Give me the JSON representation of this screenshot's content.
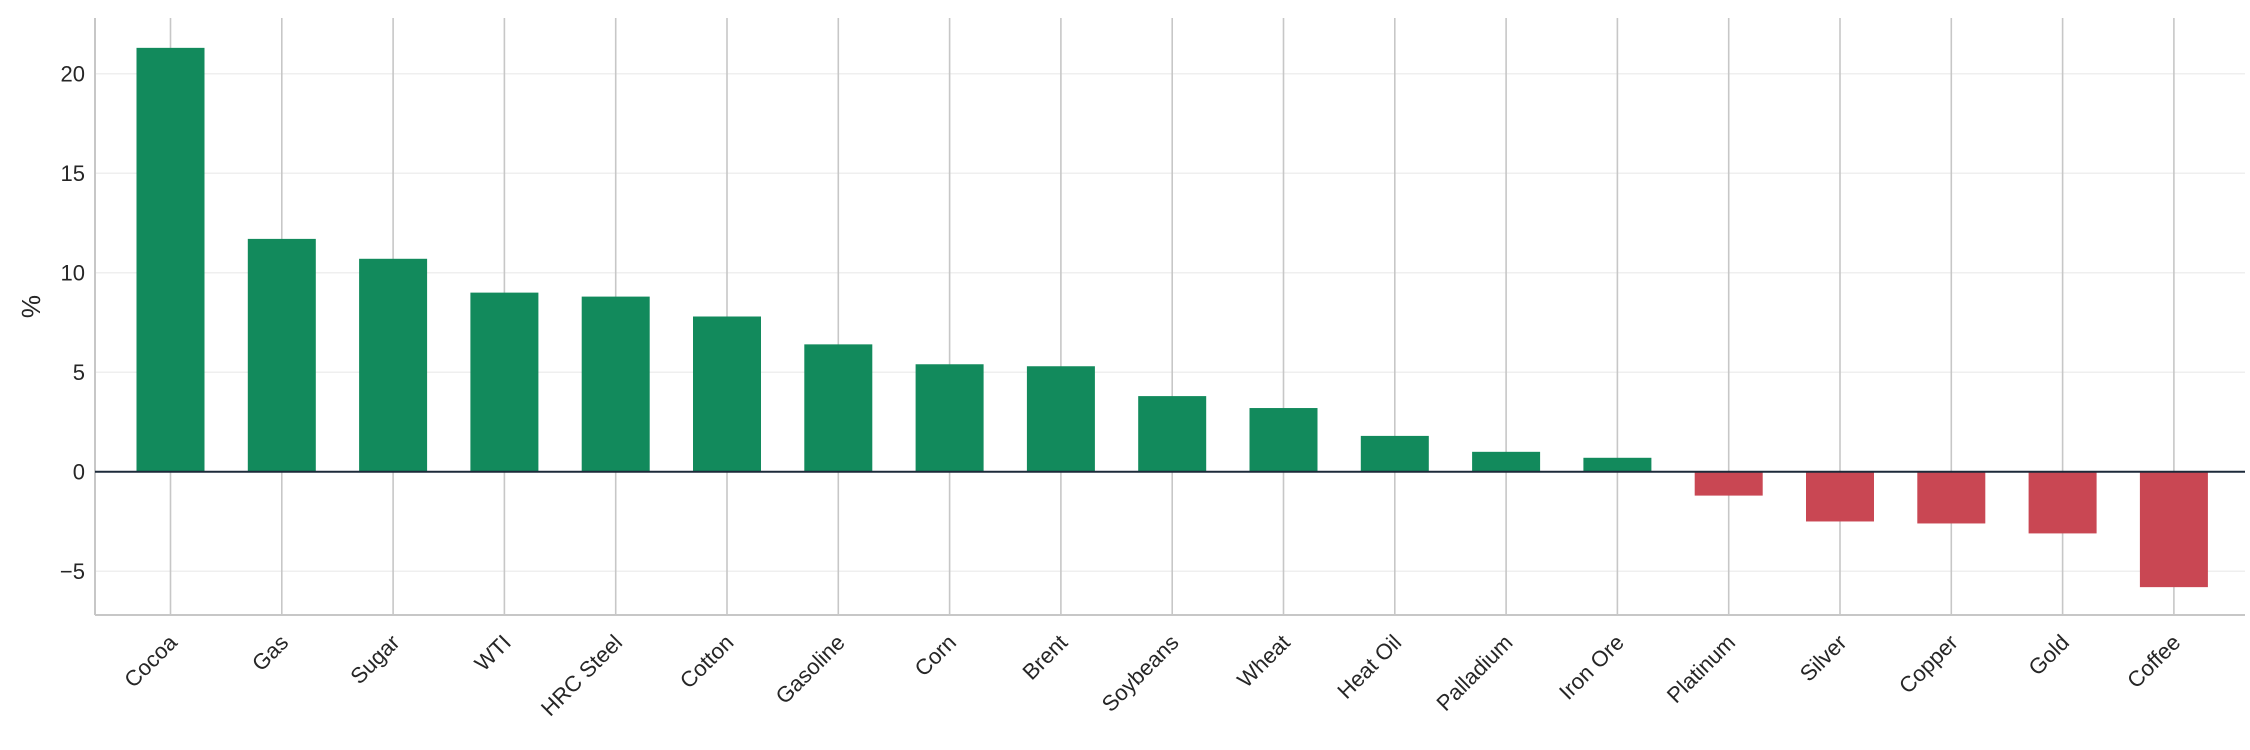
{
  "chart_data": {
    "type": "bar",
    "title": "",
    "xlabel": "",
    "ylabel": "%",
    "ylim": [
      -7.2,
      22.8
    ],
    "yticks": [
      -5,
      0,
      5,
      10,
      15,
      20
    ],
    "ytick_labels": [
      "−5",
      "0",
      "5",
      "10",
      "15",
      "20"
    ],
    "grid": "vertical lines at categories, faint horizontal lines at y ticks",
    "categories": [
      "Cocoa",
      "Gas",
      "Sugar",
      "WTI",
      "HRC Steel",
      "Cotton",
      "Gasoline",
      "Corn",
      "Brent",
      "Soybeans",
      "Wheat",
      "Heat Oil",
      "Palladium",
      "Iron Ore",
      "Platinum",
      "Silver",
      "Copper",
      "Gold",
      "Coffee"
    ],
    "values": [
      21.3,
      11.7,
      10.7,
      9.0,
      8.8,
      7.8,
      6.4,
      5.4,
      5.3,
      3.8,
      3.2,
      1.8,
      1.0,
      0.7,
      -1.2,
      -2.5,
      -2.6,
      -3.1,
      -5.8
    ],
    "colors": {
      "positive": "#128a5c",
      "negative": "#c94753",
      "zero_line": "#1d2a3a",
      "grid": "#c7c7c7",
      "grid_faint": "#efefef",
      "axis": "#c7c7c7",
      "text": "#262626"
    }
  }
}
